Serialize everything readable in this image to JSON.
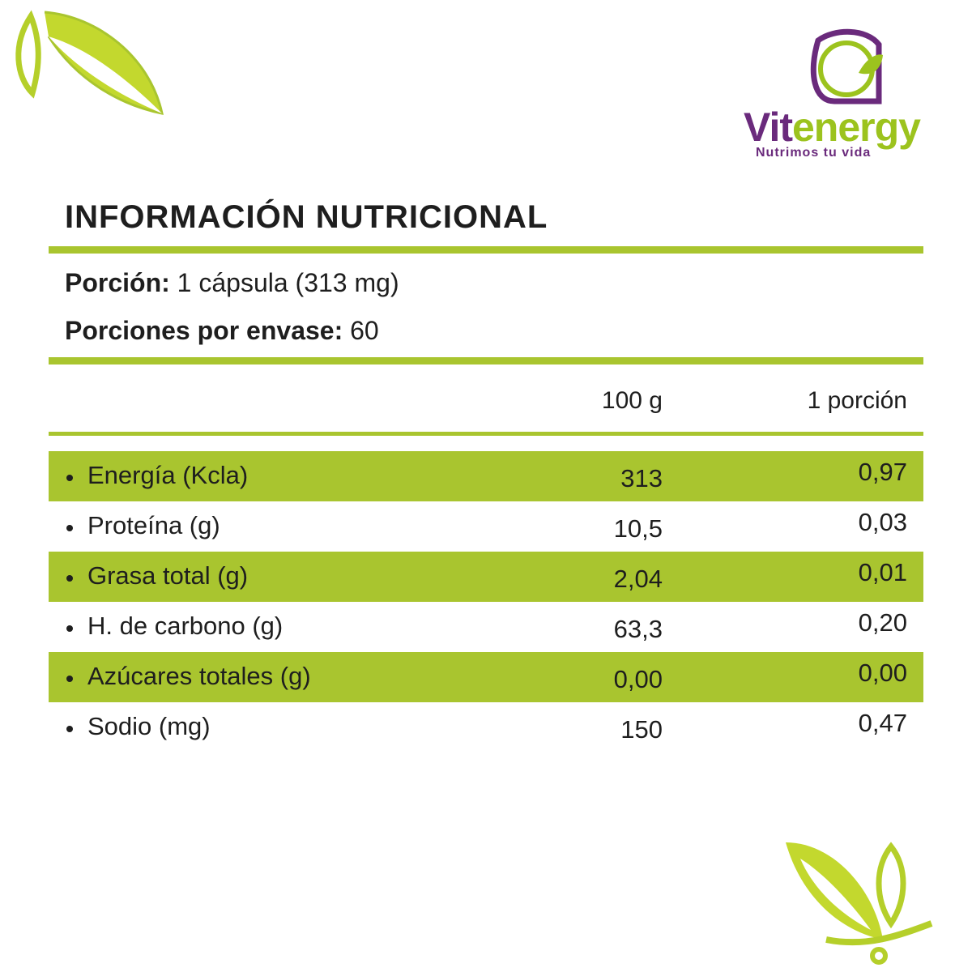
{
  "logo": {
    "brand": [
      "Vit",
      "energy"
    ],
    "tagline": "Nutrimos tu vida"
  },
  "title": "INFORMACIÓN NUTRICIONAL",
  "serving": {
    "label": "Porción:",
    "value": "1 cápsula (313 mg)"
  },
  "servings_per_container": {
    "label": "Porciones por envase:",
    "value": "60"
  },
  "table": {
    "header": [
      "100 g",
      "1 porción"
    ],
    "rows": [
      [
        "Energía (Kcla)",
        "313",
        "0,97"
      ],
      [
        "Proteína (g)",
        "10,5",
        "0,03"
      ],
      [
        "Grasa total (g)",
        "2,04",
        "0,01"
      ],
      [
        "H. de carbono (g)",
        "63,3",
        "0,20"
      ],
      [
        "Azúcares totales (g)",
        "0,00",
        "0,00"
      ],
      [
        "Sodio (mg)",
        "150",
        "0,47"
      ]
    ]
  }
}
